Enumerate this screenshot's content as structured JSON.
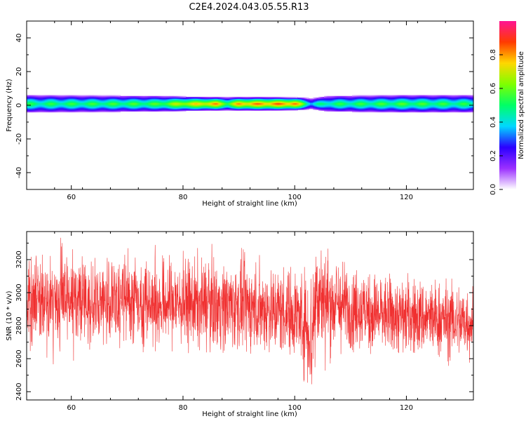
{
  "title": "C2E4.2024.043.05.55.R13",
  "chart_data": [
    {
      "type": "heatmap",
      "xlabel": "Height of straight line (km)",
      "ylabel": "Frequency (Hz)",
      "xlim": [
        52,
        132
      ],
      "ylim": [
        -50,
        50
      ],
      "xticks": [
        60,
        80,
        100,
        120
      ],
      "yticks": [
        -40,
        -20,
        0,
        20,
        40
      ],
      "band": {
        "center_hz": 1,
        "half_width_hz": [
          [
            52,
            4.5
          ],
          [
            75,
            4
          ],
          [
            85,
            3.2
          ],
          [
            95,
            3.2
          ],
          [
            101,
            3
          ],
          [
            103,
            2.5
          ],
          [
            106,
            4
          ],
          [
            120,
            4.5
          ],
          [
            132,
            4.5
          ]
        ],
        "peak_amplitude": [
          [
            52,
            0.5
          ],
          [
            75,
            0.55
          ],
          [
            80,
            0.7
          ],
          [
            86,
            0.8
          ],
          [
            88,
            0.6
          ],
          [
            90,
            0.8
          ],
          [
            100,
            0.85
          ],
          [
            103,
            0.4
          ],
          [
            106,
            0.5
          ],
          [
            120,
            0.55
          ],
          [
            132,
            0.5
          ]
        ]
      },
      "colorbar": {
        "label": "Normalized spectral amplitude",
        "ticks": [
          "0.0",
          "0.2",
          "0.4",
          "0.6",
          "0.8"
        ],
        "colors": [
          "#ffffff",
          "#9b30ff",
          "#2b00ff",
          "#00d8ff",
          "#00ff66",
          "#7fff00",
          "#ffd700",
          "#ff3b00",
          "#ff1493"
        ]
      }
    },
    {
      "type": "line",
      "xlabel": "Height of straight line (km)",
      "ylabel": "SNR (10 * v/v)",
      "xlim": [
        52,
        132
      ],
      "ylim": [
        2350,
        3370
      ],
      "xticks": [
        60,
        80,
        100,
        120
      ],
      "yticks": [
        2400,
        2600,
        2800,
        3000,
        3200
      ],
      "series_color": "#f03030",
      "mean_profile": [
        [
          52,
          2940
        ],
        [
          70,
          2950
        ],
        [
          90,
          2920
        ],
        [
          100,
          2880
        ],
        [
          102,
          2820
        ],
        [
          103,
          2720
        ],
        [
          104,
          3030
        ],
        [
          105,
          2950
        ],
        [
          115,
          2870
        ],
        [
          132,
          2820
        ]
      ],
      "noise_amplitude": [
        [
          52,
          130
        ],
        [
          100,
          130
        ],
        [
          102,
          150
        ],
        [
          103.3,
          230
        ],
        [
          104.5,
          160
        ],
        [
          110,
          120
        ],
        [
          132,
          110
        ]
      ]
    }
  ]
}
